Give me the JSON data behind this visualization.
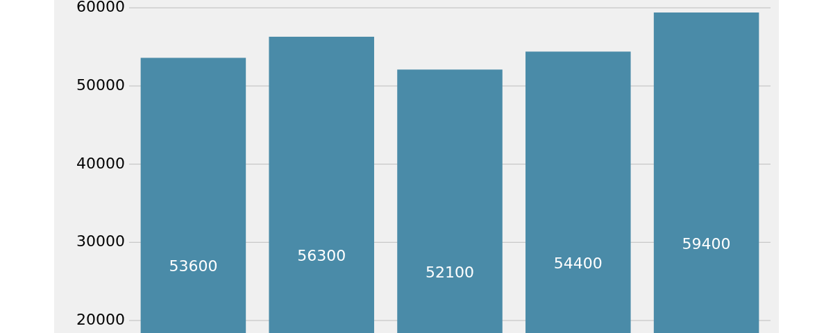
{
  "chart_data": {
    "type": "bar",
    "categories": [
      null,
      null,
      null,
      null,
      null
    ],
    "values": [
      53600,
      56300,
      52100,
      54400,
      59400
    ],
    "color": "#4a8ba8",
    "ylim": [
      18400,
      61000
    ],
    "yticks": [
      20000,
      30000,
      40000,
      50000,
      60000
    ],
    "grid": "y",
    "data_labels": true
  }
}
